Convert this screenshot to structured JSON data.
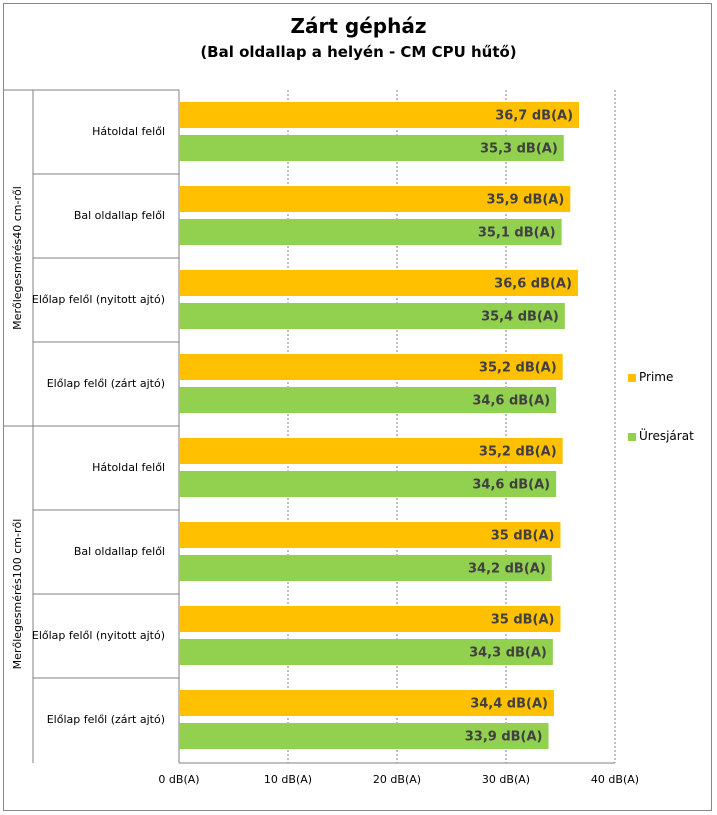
{
  "chart_data": {
    "type": "bar",
    "orientation": "horizontal",
    "title": "Zárt gépház",
    "subtitle": "(Bal oldallap a helyén - CM CPU hűtő)",
    "groups": [
      {
        "label": "Merőlegesmérés40 cm-ről",
        "categories": [
          "Hátoldal felől",
          "Bal oldallap felől",
          "Előlap felől (nyitott ajtó)",
          "Előlap felől (zárt ajtó)"
        ]
      },
      {
        "label": "Merőlegesmérés100 cm-ről",
        "categories": [
          "Hátoldal felől",
          "Bal oldallap felől",
          "Előlap felől (nyitott ajtó)",
          "Előlap felől (zárt ajtó)"
        ]
      }
    ],
    "series": [
      {
        "name": "Prime",
        "color": "#ffc000",
        "values": [
          36.7,
          35.9,
          36.6,
          35.2,
          35.2,
          35,
          35,
          34.4
        ],
        "labels": [
          "36,7 dB(A)",
          "35,9 dB(A)",
          "36,6 dB(A)",
          "35,2 dB(A)",
          "35,2 dB(A)",
          "35 dB(A)",
          "35 dB(A)",
          "34,4 dB(A)"
        ]
      },
      {
        "name": "Üresjárat",
        "color": "#92d050",
        "values": [
          35.3,
          35.1,
          35.4,
          34.6,
          34.6,
          34.2,
          34.3,
          33.9
        ],
        "labels": [
          "35,3 dB(A)",
          "35,1 dB(A)",
          "35,4 dB(A)",
          "34,6 dB(A)",
          "34,6 dB(A)",
          "34,2 dB(A)",
          "34,3 dB(A)",
          "33,9 dB(A)"
        ]
      }
    ],
    "xlim": [
      0,
      40
    ],
    "xticks": [
      0,
      10,
      20,
      30,
      40
    ],
    "xtick_labels": [
      "0 dB(A)",
      "10 dB(A)",
      "20 dB(A)",
      "30 dB(A)",
      "40 dB(A)"
    ],
    "grid": "vertical-dashed",
    "legend": "right"
  }
}
